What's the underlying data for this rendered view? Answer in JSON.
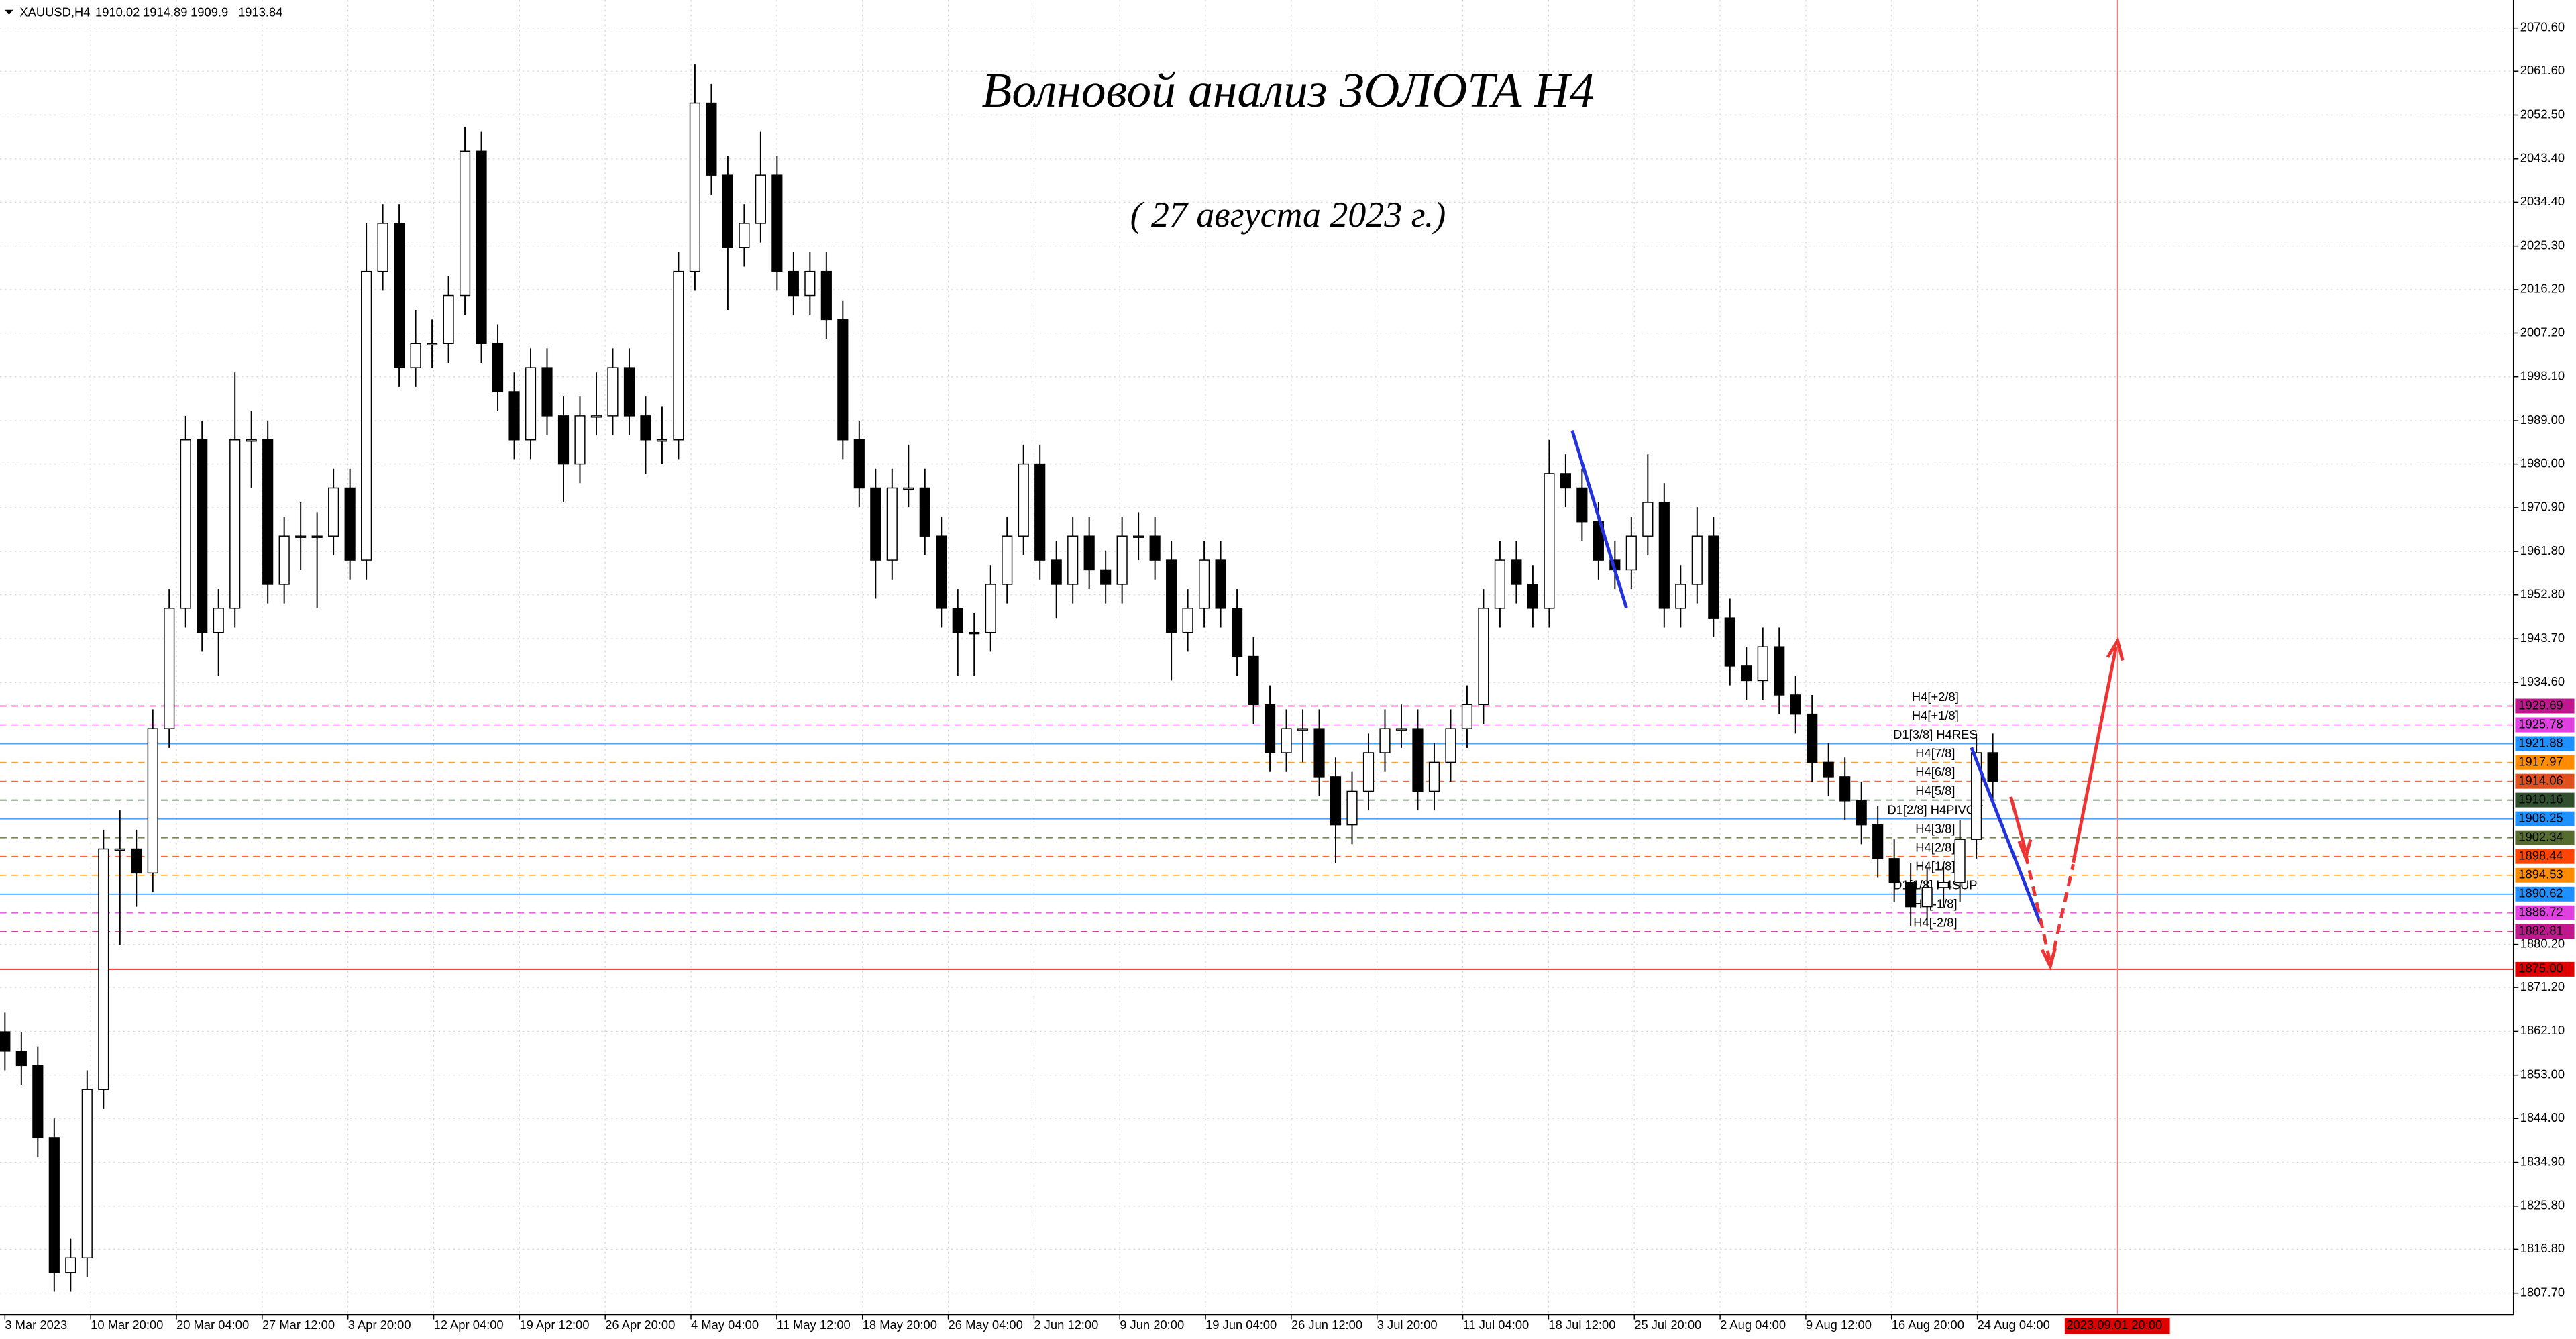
{
  "chart_data": {
    "type": "candlestick",
    "symbol": "XAUUSD,H4",
    "header_values": [
      1910.02,
      1914.89,
      1909.9,
      1913.84
    ],
    "title": "Волновой анализ ЗОЛОТА H4",
    "subtitle": "( 27 августа 2023 г.)",
    "categories": [
      "3 Mar 2023",
      "10 Mar 20:00",
      "20 Mar 04:00",
      "27 Mar 12:00",
      "3 Apr 20:00",
      "12 Apr 04:00",
      "19 Apr 12:00",
      "26 Apr 20:00",
      "4 May 04:00",
      "11 May 12:00",
      "18 May 20:00",
      "26 May 04:00",
      "2 Jun 12:00",
      "9 Jun 20:00",
      "19 Jun 04:00",
      "26 Jun 12:00",
      "3 Jul 20:00",
      "11 Jul 04:00",
      "18 Jul 12:00",
      "25 Jul 20:00",
      "2 Aug 04:00",
      "9 Aug 12:00",
      "16 Aug 20:00",
      "24 Aug 04:00"
    ],
    "future_label": "2023.09.01 20:00",
    "ylim": [
      1803.3,
      2076.4
    ],
    "yticks": [
      {
        "value": 2070.6,
        "label": "2070.60"
      },
      {
        "value": 2061.6,
        "label": "2061.60"
      },
      {
        "value": 2052.5,
        "label": "2052.50"
      },
      {
        "value": 2043.4,
        "label": "2043.40"
      },
      {
        "value": 2034.4,
        "label": "2034.40"
      },
      {
        "value": 2025.3,
        "label": "2025.30"
      },
      {
        "value": 2016.2,
        "label": "2016.20"
      },
      {
        "value": 2007.2,
        "label": "2007.20"
      },
      {
        "value": 1998.1,
        "label": "1998.10"
      },
      {
        "value": 1989,
        "label": "1989.00"
      },
      {
        "value": 1980,
        "label": "1980.00"
      },
      {
        "value": 1970.9,
        "label": "1970.90"
      },
      {
        "value": 1961.8,
        "label": "1961.80"
      },
      {
        "value": 1952.8,
        "label": "1952.80"
      },
      {
        "value": 1943.7,
        "label": "1943.70"
      },
      {
        "value": 1934.6,
        "label": "1934.60"
      },
      {
        "value": 1880.2,
        "label": "1880.20"
      },
      {
        "value": 1871.2,
        "label": "1871.20"
      },
      {
        "value": 1862.1,
        "label": "1862.10"
      },
      {
        "value": 1853,
        "label": "1853.00"
      },
      {
        "value": 1844,
        "label": "1844.00"
      },
      {
        "value": 1834.9,
        "label": "1834.90"
      },
      {
        "value": 1825.8,
        "label": "1825.80"
      },
      {
        "value": 1816.8,
        "label": "1816.80"
      },
      {
        "value": 1807.7,
        "label": "1807.70"
      }
    ],
    "grid": true,
    "up_color": "#ffffff",
    "down_color": "#000000",
    "ohlc": [
      [
        1862,
        1866,
        1854,
        1858
      ],
      [
        1858,
        1862,
        1851,
        1855
      ],
      [
        1855,
        1859,
        1836,
        1840
      ],
      [
        1840,
        1844,
        1808,
        1812
      ],
      [
        1812,
        1819,
        1808,
        1815
      ],
      [
        1815,
        1854,
        1811,
        1850
      ],
      [
        1850,
        1904,
        1846,
        1900
      ],
      [
        1900,
        1908,
        1880,
        1900
      ],
      [
        1900,
        1904,
        1888,
        1895
      ],
      [
        1895,
        1929,
        1891,
        1925
      ],
      [
        1925,
        1954,
        1921,
        1950
      ],
      [
        1950,
        1990,
        1946,
        1985
      ],
      [
        1985,
        1989,
        1941,
        1945
      ],
      [
        1945,
        1954,
        1936,
        1950
      ],
      [
        1950,
        1999,
        1946,
        1985
      ],
      [
        1985,
        1991,
        1975,
        1985
      ],
      [
        1985,
        1989,
        1951,
        1955
      ],
      [
        1955,
        1969,
        1951,
        1965
      ],
      [
        1965,
        1972,
        1958,
        1965
      ],
      [
        1965,
        1970,
        1950,
        1965
      ],
      [
        1965,
        1979,
        1961,
        1975
      ],
      [
        1975,
        1979,
        1956,
        1960
      ],
      [
        1960,
        2030,
        1956,
        2020
      ],
      [
        2020,
        2034,
        2016,
        2030
      ],
      [
        2030,
        2034,
        1996,
        2000
      ],
      [
        2000,
        2012,
        1996,
        2005
      ],
      [
        2005,
        2010,
        2000,
        2005
      ],
      [
        2005,
        2019,
        2001,
        2015
      ],
      [
        2015,
        2050,
        2011,
        2045
      ],
      [
        2045,
        2049,
        2001,
        2005
      ],
      [
        2005,
        2009,
        1991,
        1995
      ],
      [
        1995,
        1999,
        1981,
        1985
      ],
      [
        1985,
        2004,
        1981,
        2000
      ],
      [
        2000,
        2004,
        1986,
        1990
      ],
      [
        1990,
        1994,
        1972,
        1980
      ],
      [
        1980,
        1994,
        1976,
        1990
      ],
      [
        1990,
        1999,
        1986,
        1990
      ],
      [
        1990,
        2004,
        1986,
        2000
      ],
      [
        2000,
        2004,
        1986,
        1990
      ],
      [
        1990,
        1994,
        1978,
        1985
      ],
      [
        1985,
        1992,
        1980,
        1985
      ],
      [
        1985,
        2024,
        1981,
        2020
      ],
      [
        2020,
        2063,
        2016,
        2055
      ],
      [
        2055,
        2059,
        2036,
        2040
      ],
      [
        2040,
        2044,
        2012,
        2025
      ],
      [
        2025,
        2034,
        2021,
        2030
      ],
      [
        2030,
        2049,
        2026,
        2040
      ],
      [
        2040,
        2044,
        2016,
        2020
      ],
      [
        2020,
        2024,
        2011,
        2015
      ],
      [
        2015,
        2024,
        2011,
        2020
      ],
      [
        2020,
        2024,
        2006,
        2010
      ],
      [
        2010,
        2014,
        1981,
        1985
      ],
      [
        1985,
        1989,
        1971,
        1975
      ],
      [
        1975,
        1979,
        1952,
        1960
      ],
      [
        1960,
        1979,
        1956,
        1975
      ],
      [
        1975,
        1984,
        1971,
        1975
      ],
      [
        1975,
        1979,
        1961,
        1965
      ],
      [
        1965,
        1969,
        1946,
        1950
      ],
      [
        1950,
        1954,
        1936,
        1945
      ],
      [
        1945,
        1949,
        1936,
        1945
      ],
      [
        1945,
        1959,
        1941,
        1955
      ],
      [
        1955,
        1969,
        1951,
        1965
      ],
      [
        1965,
        1984,
        1961,
        1980
      ],
      [
        1980,
        1984,
        1956,
        1960
      ],
      [
        1960,
        1964,
        1948,
        1955
      ],
      [
        1955,
        1969,
        1951,
        1965
      ],
      [
        1965,
        1969,
        1954,
        1958
      ],
      [
        1958,
        1962,
        1951,
        1955
      ],
      [
        1955,
        1969,
        1951,
        1965
      ],
      [
        1965,
        1970,
        1960,
        1965
      ],
      [
        1965,
        1969,
        1956,
        1960
      ],
      [
        1960,
        1964,
        1935,
        1945
      ],
      [
        1945,
        1954,
        1941,
        1950
      ],
      [
        1950,
        1964,
        1946,
        1960
      ],
      [
        1960,
        1964,
        1946,
        1950
      ],
      [
        1950,
        1954,
        1936,
        1940
      ],
      [
        1940,
        1944,
        1926,
        1930
      ],
      [
        1930,
        1934,
        1916,
        1920
      ],
      [
        1920,
        1929,
        1916,
        1925
      ],
      [
        1925,
        1929,
        1918,
        1925
      ],
      [
        1925,
        1929,
        1911,
        1915
      ],
      [
        1915,
        1919,
        1897,
        1905
      ],
      [
        1905,
        1916,
        1901,
        1912
      ],
      [
        1912,
        1924,
        1908,
        1920
      ],
      [
        1920,
        1929,
        1916,
        1925
      ],
      [
        1925,
        1930,
        1921,
        1925
      ],
      [
        1925,
        1929,
        1908,
        1912
      ],
      [
        1912,
        1922,
        1908,
        1918
      ],
      [
        1918,
        1929,
        1914,
        1925
      ],
      [
        1925,
        1934,
        1921,
        1930
      ],
      [
        1930,
        1954,
        1926,
        1950
      ],
      [
        1950,
        1964,
        1946,
        1960
      ],
      [
        1960,
        1964,
        1951,
        1955
      ],
      [
        1955,
        1959,
        1946,
        1950
      ],
      [
        1950,
        1985,
        1946,
        1978
      ],
      [
        1978,
        1982,
        1971,
        1975
      ],
      [
        1975,
        1979,
        1964,
        1968
      ],
      [
        1968,
        1972,
        1956,
        1960
      ],
      [
        1960,
        1964,
        1954,
        1958
      ],
      [
        1958,
        1969,
        1954,
        1965
      ],
      [
        1965,
        1982,
        1961,
        1972
      ],
      [
        1972,
        1976,
        1946,
        1950
      ],
      [
        1950,
        1959,
        1946,
        1955
      ],
      [
        1955,
        1971,
        1951,
        1965
      ],
      [
        1965,
        1969,
        1944,
        1948
      ],
      [
        1948,
        1952,
        1934,
        1938
      ],
      [
        1938,
        1942,
        1931,
        1935
      ],
      [
        1935,
        1946,
        1931,
        1942
      ],
      [
        1942,
        1946,
        1928,
        1932
      ],
      [
        1932,
        1936,
        1924,
        1928
      ],
      [
        1928,
        1932,
        1914,
        1918
      ],
      [
        1918,
        1922,
        1911,
        1915
      ],
      [
        1915,
        1919,
        1906,
        1910
      ],
      [
        1910,
        1914,
        1901,
        1905
      ],
      [
        1905,
        1909,
        1894,
        1898
      ],
      [
        1898,
        1902,
        1889,
        1893
      ],
      [
        1893,
        1897,
        1884,
        1888
      ],
      [
        1888,
        1896,
        1884,
        1892
      ],
      [
        1892,
        1897,
        1888,
        1893
      ],
      [
        1893,
        1906,
        1889,
        1902
      ],
      [
        1902,
        1924,
        1898,
        1920
      ],
      [
        1920,
        1924,
        1910,
        1914
      ]
    ],
    "levels": [
      {
        "value": 1929.69,
        "name": "H4[+2/8]",
        "color": "#c0178f",
        "style": "dashed"
      },
      {
        "value": 1925.78,
        "name": "H4[+1/8]",
        "color": "#e040e0",
        "style": "dashed"
      },
      {
        "value": 1921.88,
        "name": "D1[3/8] H4RES",
        "color": "#1e90ff",
        "style": "solid"
      },
      {
        "value": 1917.97,
        "name": "H4[7/8]",
        "color": "#ff8c00",
        "style": "dashed"
      },
      {
        "value": 1914.06,
        "name": "H4[6/8]",
        "color": "#e0501e",
        "style": "dashed"
      },
      {
        "value": 1910.16,
        "name": "H4[5/8]",
        "color": "#2f4f2f",
        "style": "dashed"
      },
      {
        "value": 1906.25,
        "name": "D1[2/8] H4PIVOT",
        "color": "#1e90ff",
        "style": "solid"
      },
      {
        "value": 1902.34,
        "name": "H4[3/8]",
        "color": "#556b2f",
        "style": "dashed"
      },
      {
        "value": 1898.44,
        "name": "H4[2/8]",
        "color": "#ff4500",
        "style": "dashed"
      },
      {
        "value": 1894.53,
        "name": "H4[1/8]",
        "color": "#ff8c00",
        "style": "dashed"
      },
      {
        "value": 1890.62,
        "name": "D1[1/8] H4SUP",
        "color": "#1e90ff",
        "style": "solid"
      },
      {
        "value": 1886.72,
        "name": "H4[-1/8]",
        "color": "#e040e0",
        "style": "dashed"
      },
      {
        "value": 1882.81,
        "name": "H4[-2/8]",
        "color": "#c0178f",
        "style": "dashed"
      },
      {
        "value": 1875,
        "value_label": "1875.00",
        "color": "#e00000",
        "style": "solid"
      }
    ]
  }
}
